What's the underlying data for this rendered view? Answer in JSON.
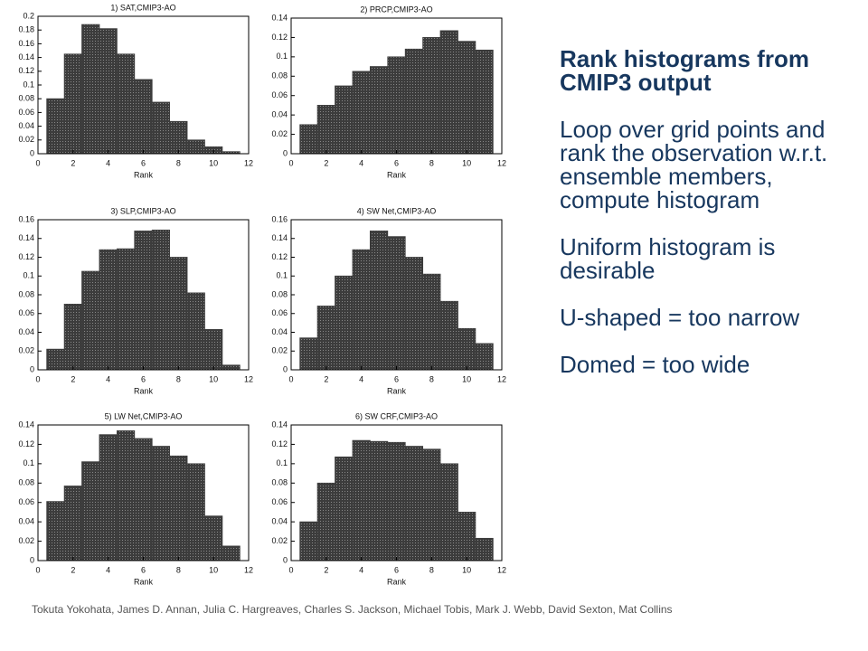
{
  "chart_data": [
    {
      "type": "histogram",
      "title": "1) SAT,CMIP3-AO",
      "x_label": "Rank",
      "color": "#3c3c3c",
      "bins": [
        0.5,
        1.5,
        2.5,
        3.5,
        4.5,
        5.5,
        6.5,
        7.5,
        8.5,
        9.5,
        10.5,
        11.5
      ],
      "values": [
        0.08,
        0.145,
        0.188,
        0.182,
        0.145,
        0.108,
        0.075,
        0.047,
        0.02,
        0.01,
        0.003
      ],
      "xlim": [
        0,
        12
      ],
      "xticks": [
        0,
        2,
        4,
        6,
        8,
        10,
        12
      ],
      "ylim": [
        0,
        0.2
      ],
      "yticks": [
        0,
        0.02,
        0.04,
        0.06,
        0.08,
        0.1,
        0.12,
        0.14,
        0.16,
        0.18,
        0.2
      ]
    },
    {
      "type": "histogram",
      "title": "2) PRCP,CMIP3-AO",
      "x_label": "Rank",
      "color": "#3c3c3c",
      "bins": [
        0.5,
        1.5,
        2.5,
        3.5,
        4.5,
        5.5,
        6.5,
        7.5,
        8.5,
        9.5,
        10.5,
        11.5
      ],
      "values": [
        0.03,
        0.05,
        0.07,
        0.085,
        0.09,
        0.1,
        0.108,
        0.12,
        0.127,
        0.116,
        0.107
      ],
      "xlim": [
        0,
        12
      ],
      "xticks": [
        0,
        2,
        4,
        6,
        8,
        10,
        12
      ],
      "ylim": [
        0,
        0.14
      ],
      "yticks": [
        0,
        0.02,
        0.04,
        0.06,
        0.08,
        0.1,
        0.12,
        0.14
      ]
    },
    {
      "type": "histogram",
      "title": "3) SLP,CMIP3-AO",
      "x_label": "Rank",
      "color": "#3c3c3c",
      "bins": [
        0.5,
        1.5,
        2.5,
        3.5,
        4.5,
        5.5,
        6.5,
        7.5,
        8.5,
        9.5,
        10.5,
        11.5
      ],
      "values": [
        0.022,
        0.07,
        0.105,
        0.128,
        0.129,
        0.148,
        0.149,
        0.12,
        0.082,
        0.043,
        0.005
      ],
      "xlim": [
        0,
        12
      ],
      "xticks": [
        0,
        2,
        4,
        6,
        8,
        10,
        12
      ],
      "ylim": [
        0,
        0.16
      ],
      "yticks": [
        0,
        0.02,
        0.04,
        0.06,
        0.08,
        0.1,
        0.12,
        0.14,
        0.16
      ]
    },
    {
      "type": "histogram",
      "title": "4) SW Net,CMIP3-AO",
      "x_label": "Rank",
      "color": "#3c3c3c",
      "bins": [
        0.5,
        1.5,
        2.5,
        3.5,
        4.5,
        5.5,
        6.5,
        7.5,
        8.5,
        9.5,
        10.5,
        11.5
      ],
      "values": [
        0.034,
        0.068,
        0.1,
        0.128,
        0.148,
        0.142,
        0.12,
        0.102,
        0.073,
        0.044,
        0.028
      ],
      "xlim": [
        0,
        12
      ],
      "xticks": [
        0,
        2,
        4,
        6,
        8,
        10,
        12
      ],
      "ylim": [
        0,
        0.16
      ],
      "yticks": [
        0,
        0.02,
        0.04,
        0.06,
        0.08,
        0.1,
        0.12,
        0.14,
        0.16
      ]
    },
    {
      "type": "histogram",
      "title": "5) LW Net,CMIP3-AO",
      "x_label": "Rank",
      "color": "#3c3c3c",
      "bins": [
        0.5,
        1.5,
        2.5,
        3.5,
        4.5,
        5.5,
        6.5,
        7.5,
        8.5,
        9.5,
        10.5,
        11.5
      ],
      "values": [
        0.061,
        0.077,
        0.102,
        0.13,
        0.134,
        0.126,
        0.118,
        0.108,
        0.1,
        0.046,
        0.015
      ],
      "xlim": [
        0,
        12
      ],
      "xticks": [
        0,
        2,
        4,
        6,
        8,
        10,
        12
      ],
      "ylim": [
        0,
        0.14
      ],
      "yticks": [
        0,
        0.02,
        0.04,
        0.06,
        0.08,
        0.1,
        0.12,
        0.14
      ]
    },
    {
      "type": "histogram",
      "title": "6) SW CRF,CMIP3-AO",
      "x_label": "Rank",
      "color": "#3c3c3c",
      "bins": [
        0.5,
        1.5,
        2.5,
        3.5,
        4.5,
        5.5,
        6.5,
        7.5,
        8.5,
        9.5,
        10.5,
        11.5
      ],
      "values": [
        0.04,
        0.08,
        0.107,
        0.124,
        0.123,
        0.122,
        0.118,
        0.115,
        0.1,
        0.05,
        0.023
      ],
      "xlim": [
        0,
        12
      ],
      "xticks": [
        0,
        2,
        4,
        6,
        8,
        10,
        12
      ],
      "ylim": [
        0,
        0.14
      ],
      "yticks": [
        0,
        0.02,
        0.04,
        0.06,
        0.08,
        0.1,
        0.12,
        0.14
      ]
    }
  ],
  "panel": {
    "heading": "Rank histograms from CMIP3 output",
    "paragraphs": [
      "Loop over grid points and rank the observation w.r.t. ensemble members, compute histogram",
      "Uniform histogram is desirable",
      "U-shaped = too narrow",
      "Domed = too wide"
    ]
  },
  "credits": "Tokuta Yokohata, James D. Annan, Julia C. Hargreaves, Charles S. Jackson, Michael Tobis, Mark J. Webb, David Sexton, Mat Collins"
}
